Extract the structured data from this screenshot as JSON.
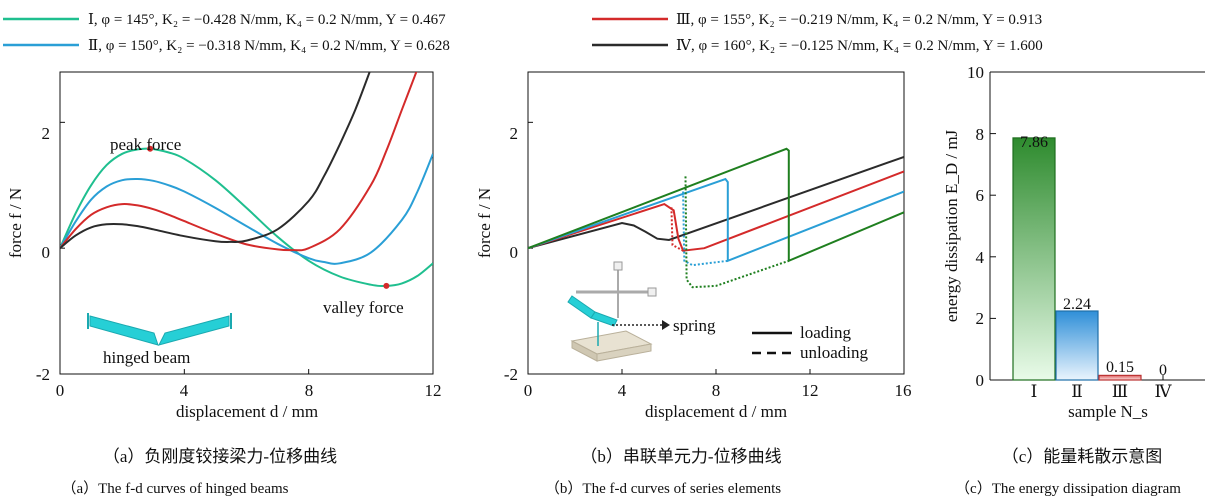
{
  "legend": [
    {
      "id": "I",
      "text": "Ⅰ, φ = 145°, K₂ = −0.428 N/mm, K₄ = 0.2 N/mm, Y = 0.467",
      "color": "#1fbf8f"
    },
    {
      "id": "II",
      "text": "Ⅱ, φ = 150°, K₂ = −0.318 N/mm, K₄ = 0.2 N/mm, Y = 0.628",
      "color": "#2a9fd6"
    },
    {
      "id": "III",
      "text": "Ⅲ, φ = 155°, K₂ = −0.219 N/mm, K₄ = 0.2 N/mm, Y = 0.913",
      "color": "#d42a2a"
    },
    {
      "id": "IV",
      "text": "Ⅳ, φ = 160°, K₂ = −0.125 N/mm, K₄ = 0.2 N/mm, Y = 1.600",
      "color": "#2b2b2b"
    }
  ],
  "chart_data": [
    {
      "type": "line",
      "xlabel": "displacement d / mm",
      "ylabel": "force f / N",
      "xlim": [
        0,
        12
      ],
      "ylim": [
        -2,
        2.8
      ],
      "xticks": [
        "0",
        "4",
        "8",
        "12"
      ],
      "yticks": [
        "-2",
        "0",
        "2"
      ],
      "annotations": {
        "peak": "peak force",
        "valley": "valley force",
        "inset": "hinged beam"
      },
      "peak_point": [
        2.9,
        1.58
      ],
      "valley_point": [
        10.5,
        -0.6
      ],
      "series": [
        {
          "id": "I",
          "color": "#1fbf8f",
          "x": [
            0,
            0.5,
            1,
            1.5,
            2,
            2.5,
            2.9,
            3.5,
            4,
            5,
            6,
            7,
            8,
            9,
            10,
            10.5,
            11,
            11.5,
            12
          ],
          "y": [
            0,
            0.55,
            1.0,
            1.32,
            1.5,
            1.57,
            1.58,
            1.52,
            1.42,
            1.08,
            0.64,
            0.18,
            -0.2,
            -0.45,
            -0.58,
            -0.6,
            -0.56,
            -0.44,
            -0.24
          ]
        },
        {
          "id": "II",
          "color": "#2a9fd6",
          "x": [
            0,
            0.5,
            1,
            1.5,
            2,
            2.5,
            3,
            3.5,
            4,
            5,
            6,
            7,
            8,
            8.5,
            9,
            10,
            11,
            11.5,
            12
          ],
          "y": [
            0,
            0.42,
            0.77,
            0.98,
            1.08,
            1.1,
            1.07,
            1.0,
            0.9,
            0.64,
            0.35,
            0.07,
            -0.16,
            -0.22,
            -0.24,
            -0.07,
            0.45,
            0.9,
            1.5
          ]
        },
        {
          "id": "III",
          "color": "#d42a2a",
          "x": [
            0,
            0.5,
            1,
            1.5,
            2,
            2.5,
            3,
            3.5,
            4,
            5,
            6,
            7,
            7.5,
            8,
            9,
            10,
            10.5,
            11,
            11.5
          ],
          "y": [
            0,
            0.3,
            0.53,
            0.65,
            0.7,
            0.68,
            0.62,
            0.53,
            0.43,
            0.23,
            0.06,
            -0.02,
            -0.03,
            0.0,
            0.3,
            1.0,
            1.55,
            2.2,
            2.85
          ]
        },
        {
          "id": "IV",
          "color": "#2b2b2b",
          "x": [
            0,
            0.5,
            1,
            1.5,
            2,
            2.5,
            3,
            4,
            5,
            5.5,
            6,
            7,
            8,
            8.5,
            9,
            9.5,
            10
          ],
          "y": [
            0,
            0.2,
            0.33,
            0.38,
            0.38,
            0.35,
            0.3,
            0.19,
            0.11,
            0.1,
            0.12,
            0.3,
            0.75,
            1.15,
            1.65,
            2.2,
            2.85
          ]
        }
      ]
    },
    {
      "type": "line",
      "xlabel": "displacement d / mm",
      "ylabel": "force f / N",
      "xlim": [
        0,
        16
      ],
      "ylim": [
        -2,
        2.8
      ],
      "xticks": [
        "0",
        "4",
        "8",
        "12",
        "16"
      ],
      "yticks": [
        "-2",
        "0",
        "2"
      ],
      "annotations": {
        "spring": "spring"
      },
      "style_legend": [
        {
          "style": "solid",
          "text": "loading"
        },
        {
          "style": "dashed",
          "text": "unloading"
        }
      ],
      "series": [
        {
          "id": "I",
          "color": "#1f7f1f",
          "loading": {
            "x": [
              0,
              11,
              11.1,
              11.1,
              16
            ],
            "y": [
              0,
              1.58,
              1.55,
              -0.2,
              0.57
            ]
          },
          "unloading": {
            "x": [
              6.7,
              6.75,
              7,
              8,
              11.1
            ],
            "y": [
              1.14,
              -0.5,
              -0.62,
              -0.6,
              -0.2
            ]
          }
        },
        {
          "id": "II",
          "color": "#2a9fd6",
          "loading": {
            "x": [
              0,
              8.4,
              8.5,
              8.5,
              16
            ],
            "y": [
              0,
              1.1,
              1.05,
              -0.2,
              0.9
            ]
          },
          "unloading": {
            "x": [
              6.6,
              6.65,
              7,
              8.5
            ],
            "y": [
              0.9,
              -0.2,
              -0.27,
              -0.2
            ]
          }
        },
        {
          "id": "III",
          "color": "#d42a2a",
          "loading": {
            "x": [
              0,
              5.8,
              6.2,
              6.4,
              6.6,
              7.5,
              16
            ],
            "y": [
              0,
              0.7,
              0.6,
              0.15,
              -0.04,
              0.0,
              1.22
            ]
          },
          "unloading": {
            "x": [
              6.1,
              6.15,
              6.6
            ],
            "y": [
              0.65,
              0.05,
              -0.04
            ]
          }
        },
        {
          "id": "IV",
          "color": "#2b2b2b",
          "loading": {
            "x": [
              0,
              4,
              4.5,
              5,
              5.5,
              6,
              16
            ],
            "y": [
              0,
              0.4,
              0.36,
              0.26,
              0.15,
              0.13,
              1.45
            ]
          },
          "unloading": null
        }
      ]
    },
    {
      "type": "bar",
      "xlabel": "sample N_s",
      "ylabel": "energy dissipation E_D / mJ",
      "categories": [
        "Ⅰ",
        "Ⅱ",
        "Ⅲ",
        "Ⅳ"
      ],
      "values": [
        7.86,
        2.24,
        0.15,
        0
      ],
      "value_labels": [
        "7.86",
        "2.24",
        "0.15",
        "0"
      ],
      "ylim": [
        0,
        10
      ],
      "yticks": [
        "0",
        "2",
        "4",
        "6",
        "8",
        "10"
      ]
    }
  ],
  "captions": [
    {
      "cn": "（a）负刚度铰接梁力-位移曲线",
      "en": "（a）The f-d curves of hinged beams"
    },
    {
      "cn": "（b）串联单元力-位移曲线",
      "en": "（b）The f-d curves of series elements"
    },
    {
      "cn": "（c）能量耗散示意图",
      "en": "（c）The energy dissipation diagram"
    }
  ]
}
